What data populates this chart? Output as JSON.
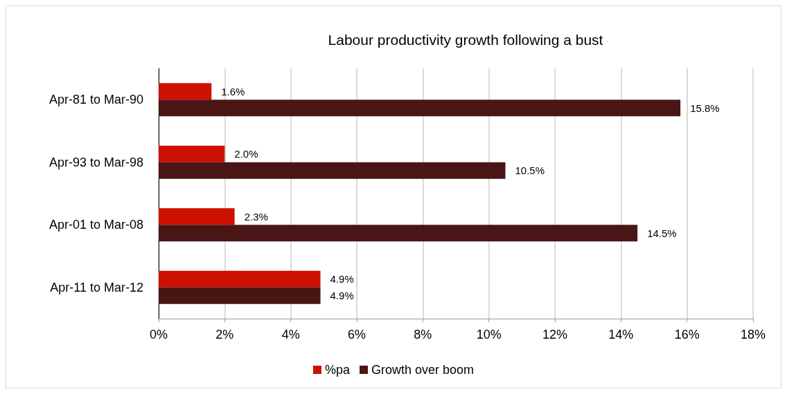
{
  "chart_data": {
    "type": "bar",
    "orientation": "horizontal",
    "title": "Labour productivity growth following a bust",
    "categories": [
      "Apr-81 to Mar-90",
      "Apr-93 to Mar-98",
      "Apr-01 to Mar-08",
      "Apr-11 to Mar-12"
    ],
    "series": [
      {
        "name": "%pa",
        "color": "#cc1100",
        "values": [
          1.6,
          2.0,
          2.3,
          4.9
        ],
        "value_labels": [
          "1.6%",
          "2.0%",
          "2.3%",
          "4.9%"
        ]
      },
      {
        "name": "Growth over boom",
        "color": "#4a1515",
        "values": [
          15.8,
          10.5,
          14.5,
          4.9
        ],
        "value_labels": [
          "15.8%",
          "10.5%",
          "14.5%",
          "4.9%"
        ]
      }
    ],
    "xlim": [
      0,
      18
    ],
    "xticks": [
      {
        "value": 0,
        "label": "0%"
      },
      {
        "value": 2,
        "label": "2%"
      },
      {
        "value": 4,
        "label": "4%"
      },
      {
        "value": 6,
        "label": "6%"
      },
      {
        "value": 8,
        "label": "8%"
      },
      {
        "value": 10,
        "label": "10%"
      },
      {
        "value": 12,
        "label": "12%"
      },
      {
        "value": 14,
        "label": "14%"
      },
      {
        "value": 16,
        "label": "16%"
      },
      {
        "value": 18,
        "label": "18%"
      }
    ],
    "grid": "x",
    "legend": "bottom"
  }
}
